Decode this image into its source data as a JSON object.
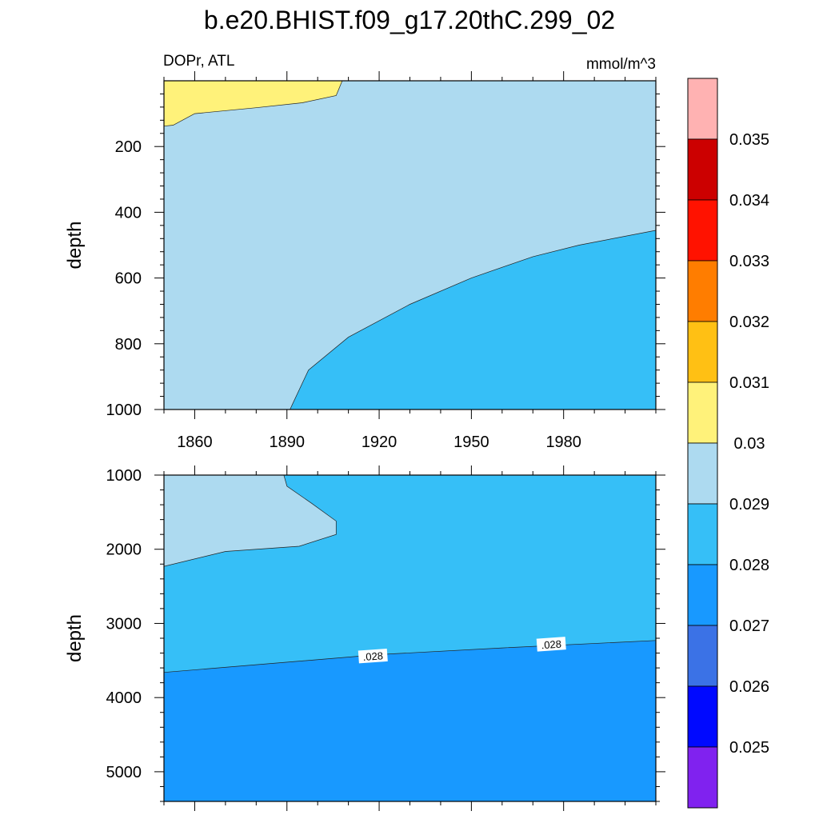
{
  "chart_data": {
    "type": "contour",
    "title": "b.e20.BHIST.f09_g17.20thC.299_02",
    "left_subtitle": "DOPr, ATL",
    "right_subtitle": "mmol/m^3",
    "x_tick_labels": [
      "1860",
      "1890",
      "1920",
      "1950",
      "1980"
    ],
    "x_ticks": [
      1860,
      1890,
      1920,
      1950,
      1980
    ],
    "xlim": [
      1850,
      2010
    ],
    "panels": [
      {
        "name": "upper",
        "ylabel": "depth",
        "ylim": [
          0,
          1000
        ],
        "y_ticks": [
          200,
          400,
          600,
          800,
          1000
        ],
        "y_tick_labels": [
          "200",
          "400",
          "600",
          "800",
          "1000"
        ],
        "background_level": "0.029-0.03",
        "regions": [
          {
            "level": "0.03-0.031",
            "color": "#FFF27A",
            "boundary": [
              [
                1850,
                0
              ],
              [
                1908,
                0
              ],
              [
                1906,
                45
              ],
              [
                1895,
                67
              ],
              [
                1880,
                82
              ],
              [
                1860,
                100
              ],
              [
                1853,
                135
              ],
              [
                1850,
                138
              ]
            ]
          },
          {
            "level": "0.028-0.029",
            "color": "#36BFF7",
            "boundary": [
              [
                2010,
                455
              ],
              [
                1985,
                500
              ],
              [
                1970,
                535
              ],
              [
                1950,
                600
              ],
              [
                1930,
                680
              ],
              [
                1910,
                780
              ],
              [
                1897,
                880
              ],
              [
                1892,
                980
              ],
              [
                1891,
                1000
              ],
              [
                2010,
                1000
              ]
            ]
          }
        ],
        "contour_labels": []
      },
      {
        "name": "lower",
        "ylabel": "depth",
        "ylim": [
          1000,
          5400
        ],
        "y_ticks": [
          1000,
          2000,
          3000,
          4000,
          5000
        ],
        "y_tick_labels": [
          "1000",
          "2000",
          "3000",
          "4000",
          "5000"
        ],
        "background_level": "0.027-0.028",
        "regions": [
          {
            "level": "0.028-0.029",
            "color": "#36BFF7",
            "boundary": [
              [
                1850,
                1000
              ],
              [
                2010,
                1000
              ],
              [
                2010,
                3230
              ],
              [
                1960,
                3330
              ],
              [
                1920,
                3420
              ],
              [
                1850,
                3660
              ]
            ]
          },
          {
            "level": "0.029-0.03",
            "color": "#ADDAF0",
            "boundary": [
              [
                1850,
                1000
              ],
              [
                1889,
                1000
              ],
              [
                1890,
                1150
              ],
              [
                1898,
                1380
              ],
              [
                1906,
                1620
              ],
              [
                1906,
                1800
              ],
              [
                1894,
                1960
              ],
              [
                1870,
                2030
              ],
              [
                1850,
                2230
              ]
            ]
          }
        ],
        "contour_labels": [
          {
            "x": 1918,
            "y": 3450,
            "text": ".028"
          },
          {
            "x": 1976,
            "y": 3290,
            "text": ".028"
          }
        ]
      }
    ],
    "colorbar": {
      "colors": [
        "#FFB2B2",
        "#CC0000",
        "#FF1200",
        "#FF7D00",
        "#FFC014",
        "#FFF27A",
        "#ADDAF0",
        "#36BFF7",
        "#1899FF",
        "#3B72E6",
        "#0009FF",
        "#8022EF"
      ],
      "labels": [
        "0.035",
        "0.034",
        "0.033",
        "0.032",
        "0.031",
        "0.03",
        "0.029",
        "0.028",
        "0.027",
        "0.026",
        "0.025"
      ]
    },
    "level_colors": {
      "0.03-0.031": "#FFF27A",
      "0.029-0.03": "#ADDAF0",
      "0.028-0.029": "#36BFF7",
      "0.027-0.028": "#1899FF"
    }
  }
}
